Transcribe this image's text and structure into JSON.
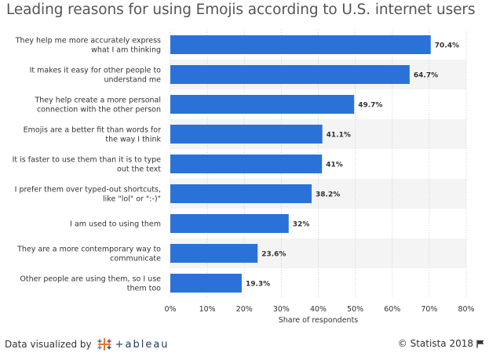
{
  "page": {
    "title": "Leading reasons for using Emojis according to U.S. internet users",
    "footer_left": "Data visualized by",
    "footer_brand": "+ableau",
    "footer_right": "© Statista 2018"
  },
  "colors": {
    "bar": "#2b72d8",
    "alt_row": "#f4f4f4",
    "grid": "#cfcfcf"
  },
  "icons": [
    "tableau-logo-icon",
    "flag-icon"
  ],
  "chart_data": {
    "type": "bar",
    "orientation": "horizontal",
    "categories": [
      [
        "They help me more accurately express",
        "what I am thinking"
      ],
      [
        "It makes it easy for other people to",
        "understand me"
      ],
      [
        "They help create a more personal",
        "connection with the other person"
      ],
      [
        "Emojis are a better fit than words for",
        "the way I think"
      ],
      [
        "It is faster to use them than it is to type",
        "out the text"
      ],
      [
        "I prefer them over typed-out shortcuts,",
        "like \"lol\" or \":-)\""
      ],
      [
        "I am used to using them"
      ],
      [
        "They are a more contemporary way to",
        "communicate"
      ],
      [
        "Other people are using them, so I use",
        "them too"
      ]
    ],
    "values": [
      70.4,
      64.7,
      49.7,
      41.1,
      41,
      38.2,
      32,
      23.6,
      19.3
    ],
    "value_labels": [
      "70.4%",
      "64.7%",
      "49.7%",
      "41.1%",
      "41%",
      "38.2%",
      "32%",
      "23.6%",
      "19.3%"
    ],
    "xlabel": "Share of respondents",
    "ylabel": "",
    "xlim": [
      0,
      80
    ],
    "xticks": [
      "0%",
      "10%",
      "20%",
      "30%",
      "40%",
      "50%",
      "60%",
      "70%",
      "80%"
    ],
    "grid": true
  }
}
